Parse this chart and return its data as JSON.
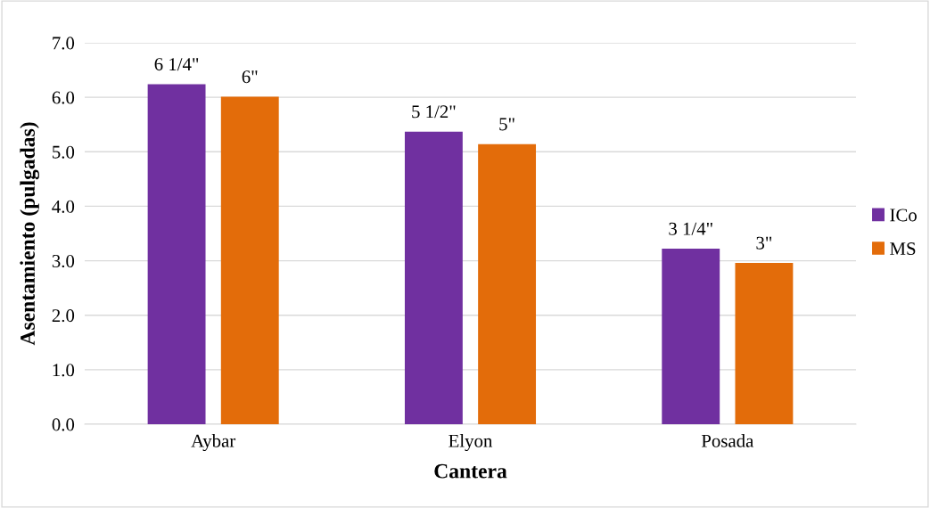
{
  "chart_data": {
    "type": "bar",
    "xlabel": "Cantera",
    "ylabel": "Asentamiento (pulgadas)",
    "categories": [
      "Aybar",
      "Elyon",
      "Posada"
    ],
    "series": [
      {
        "name": "ICo",
        "color": "#7030a0",
        "values": [
          6.24,
          5.37,
          3.22
        ],
        "value_labels": [
          "6 1/4\"",
          "5 1/2\"",
          "3 1/4\""
        ]
      },
      {
        "name": "MS",
        "color": "#e36c0a",
        "values": [
          6.01,
          5.14,
          2.96
        ],
        "value_labels": [
          "6\"",
          "5\"",
          "3\""
        ]
      }
    ],
    "ylim": [
      0,
      7
    ],
    "yticks": [
      {
        "value": 0,
        "label": "0.0"
      },
      {
        "value": 1,
        "label": "1.0"
      },
      {
        "value": 2,
        "label": "2.0"
      },
      {
        "value": 3,
        "label": "3.0"
      },
      {
        "value": 4,
        "label": "4.0"
      },
      {
        "value": 5,
        "label": "5.0"
      },
      {
        "value": 6,
        "label": "6.0"
      },
      {
        "value": 7,
        "label": "7.0"
      }
    ],
    "grid": "y",
    "legend": "right"
  }
}
